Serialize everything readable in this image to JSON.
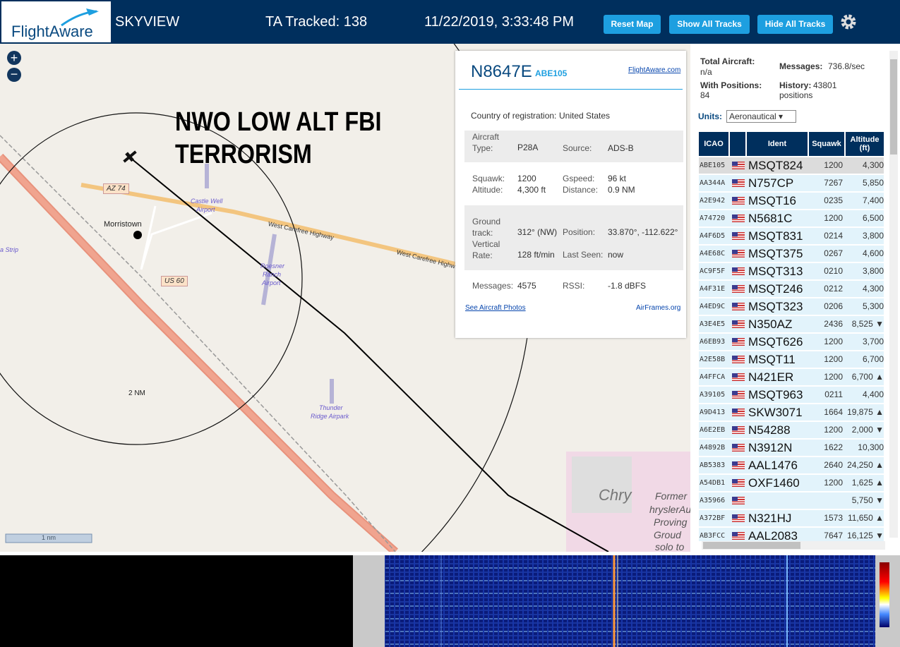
{
  "header": {
    "logo": "FlightAware",
    "title": "SKYVIEW",
    "tracked": "TA Tracked: 138",
    "datetime": "11/22/2019, 3:33:48 PM",
    "buttons": [
      "Reset Map",
      "Show All Tracks",
      "Hide All Tracks"
    ]
  },
  "map": {
    "overlay": [
      "NWO LOW ALT FBI",
      "TERRORISM"
    ],
    "labels": [
      "AZ 74",
      "Castle Well",
      "Airport",
      "Morristown",
      "West Carefree Highway",
      "West Carefree Highwa",
      "US 60",
      "Roesner",
      "Ranch",
      "Airport",
      "2 NM",
      "Thunder",
      "Ridge Airpark",
      "a Strip",
      "Chry",
      "Former",
      "hryslerAuton",
      "Proving",
      "Groud",
      "solo to"
    ],
    "scale": "1 nm"
  },
  "popup": {
    "registration": "N8647E",
    "ident": "ABE105",
    "link": "FlightAware.com",
    "country_label": "Country of registration:",
    "country": "United States",
    "fields": [
      {
        "label": "Aircraft Type:",
        "value": "P28A"
      },
      {
        "label": "Source:",
        "value": "ADS-B"
      },
      {
        "label": "Squawk:",
        "value": "1200"
      },
      {
        "label": "Altitude:",
        "value": "4,300 ft"
      },
      {
        "label": "Gspeed:",
        "value": "96 kt"
      },
      {
        "label": "Distance:",
        "value": "0.9 NM"
      },
      {
        "label": "Ground track:",
        "value": "312° (NW)"
      },
      {
        "label": "Vertical Rate:",
        "value": "128 ft/min"
      },
      {
        "label": "Position:",
        "value": "33.870°, -112.622°"
      },
      {
        "label": "Last Seen:",
        "value": "now"
      },
      {
        "label": "Messages:",
        "value": "4575"
      },
      {
        "label": "RSSI:",
        "value": "-1.8 dBFS"
      }
    ],
    "photos": "See Aircraft Photos",
    "airframes": "AirFrames.org"
  },
  "sidebar": {
    "total_label": "Total Aircraft:",
    "total": "n/a",
    "messages_label": "Messages:",
    "messages": "736.8/sec",
    "positions_label": "With Positions:",
    "positions": "84",
    "history_label": "History:",
    "history": "43801 positions",
    "units_label": "Units:",
    "units": "Aeronautical"
  },
  "table": {
    "columns": [
      "ICAO",
      "Ident",
      "Squawk",
      "Altitude (ft)"
    ],
    "rows": [
      [
        "ABE105",
        "MSQT824",
        "1200",
        "4,300"
      ],
      [
        "AA344A",
        "N757CP",
        "7267",
        "5,850"
      ],
      [
        "A2E942",
        "MSQT16",
        "0235",
        "7,400"
      ],
      [
        "A74720",
        "N5681C",
        "1200",
        "6,500"
      ],
      [
        "A4F6D5",
        "MSQT831",
        "0214",
        "3,800"
      ],
      [
        "A4E68C",
        "MSQT375",
        "0267",
        "4,600"
      ],
      [
        "AC9F5F",
        "MSQT313",
        "0210",
        "3,800"
      ],
      [
        "A4F31E",
        "MSQT246",
        "0212",
        "4,300"
      ],
      [
        "A4ED9C",
        "MSQT323",
        "0206",
        "5,300"
      ],
      [
        "A3E4E5",
        "N350AZ",
        "2436",
        "8,525 ▼"
      ],
      [
        "A6EB93",
        "MSQT626",
        "1200",
        "3,700"
      ],
      [
        "A2E58B",
        "MSQT11",
        "1200",
        "6,700"
      ],
      [
        "A4FFCA",
        "N421ER",
        "1200",
        "6,700 ▲"
      ],
      [
        "A39105",
        "MSQT963",
        "0211",
        "4,400"
      ],
      [
        "A9D413",
        "SKW3071",
        "1664",
        "19,875 ▲"
      ],
      [
        "A6E2EB",
        "N54288",
        "1200",
        "2,000 ▼"
      ],
      [
        "A4892B",
        "N3912N",
        "1622",
        "10,300"
      ],
      [
        "AB5383",
        "AAL1476",
        "2640",
        "24,250 ▲"
      ],
      [
        "A54DB1",
        "OXF1460",
        "1200",
        "1,625 ▲"
      ],
      [
        "A35966",
        null,
        null,
        "5,750 ▼"
      ],
      [
        "A372BF",
        "N321HJ",
        "1573",
        "11,650 ▲"
      ],
      [
        "AB3FCC",
        "AAL2083",
        "7647",
        "16,125 ▼"
      ]
    ]
  }
}
